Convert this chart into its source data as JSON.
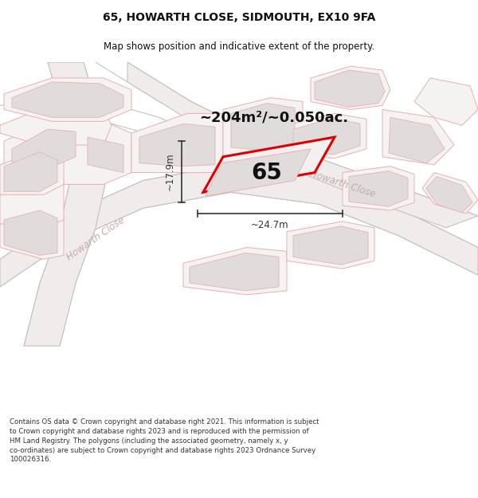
{
  "title": "65, HOWARTH CLOSE, SIDMOUTH, EX10 9FA",
  "subtitle": "Map shows position and indicative extent of the property.",
  "area_text": "~204m²/~0.050ac.",
  "dim_width": "~24.7m",
  "dim_height": "~17.9m",
  "plot_number": "65",
  "footer": "Contains OS data © Crown copyright and database right 2021. This information is subject to Crown copyright and database rights 2023 and is reproduced with the permission of HM Land Registry. The polygons (including the associated geometry, namely x, y co-ordinates) are subject to Crown copyright and database rights 2023 Ordnance Survey 100026316.",
  "map_bg": "#f7f5f5",
  "building_fill": "#e0dcdc",
  "building_edge": "#e8b8b8",
  "road_line_color": "#c8c0c0",
  "plot_outline_color": "#e8b0b0",
  "plot_fill": "#f5f2f2",
  "highlight_fill": "#f5f0f0",
  "highlight_edge": "#dd0000",
  "street_label_color": "#c8a8a8",
  "dim_color": "#333333",
  "text_color": "#111111",
  "footer_color": "#333333",
  "title_fontsize": 10,
  "subtitle_fontsize": 8.5,
  "area_fontsize": 13,
  "number_fontsize": 20,
  "dim_fontsize": 8.5,
  "street_fontsize": 8.5,
  "footer_fontsize": 6.2
}
